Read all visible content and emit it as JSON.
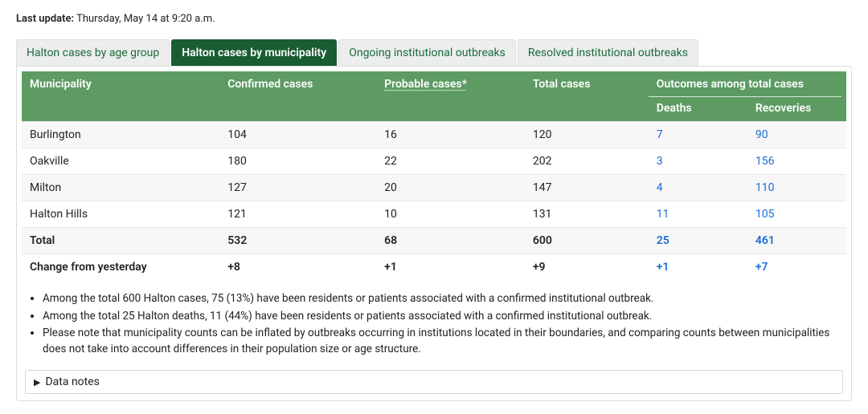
{
  "last_update": {
    "label": "Last update:",
    "value": "Thursday, May 14 at 9:20 a.m."
  },
  "tabs": [
    {
      "label": "Halton cases by age group",
      "active": false
    },
    {
      "label": "Halton cases by municipality",
      "active": true
    },
    {
      "label": "Ongoing institutional outbreaks",
      "active": false
    },
    {
      "label": "Resolved institutional outbreaks",
      "active": false
    }
  ],
  "table": {
    "header": {
      "municipality": "Municipality",
      "confirmed": "Confirmed cases",
      "probable": "Probable cases*",
      "total": "Total cases",
      "outcomes_group": "Outcomes among total cases",
      "deaths": "Deaths",
      "recoveries": "Recoveries"
    },
    "colors": {
      "header_bg": "#5d9b63",
      "header_fg": "#ffffff",
      "tab_active_bg": "#1a5d32",
      "tab_inactive_bg": "#eceeed",
      "tab_inactive_fg": "#1a6b3a",
      "row_odd_bg": "#f7f7f7",
      "row_even_bg": "#ffffff",
      "link_color": "#1a6bd6",
      "border_color": "#dddddd"
    },
    "rows": [
      {
        "municipality": "Burlington",
        "confirmed": "104",
        "probable": "16",
        "total": "120",
        "deaths": "7",
        "recoveries": "90",
        "bold": false
      },
      {
        "municipality": "Oakville",
        "confirmed": "180",
        "probable": "22",
        "total": "202",
        "deaths": "3",
        "recoveries": "156",
        "bold": false
      },
      {
        "municipality": "Milton",
        "confirmed": "127",
        "probable": "20",
        "total": "147",
        "deaths": "4",
        "recoveries": "110",
        "bold": false
      },
      {
        "municipality": "Halton Hills",
        "confirmed": "121",
        "probable": "10",
        "total": "131",
        "deaths": "11",
        "recoveries": "105",
        "bold": false
      },
      {
        "municipality": "Total",
        "confirmed": "532",
        "probable": "68",
        "total": "600",
        "deaths": "25",
        "recoveries": "461",
        "bold": true
      },
      {
        "municipality": "Change from yesterday",
        "confirmed": "+8",
        "probable": "+1",
        "total": "+9",
        "deaths": "+1",
        "recoveries": "+7",
        "bold": true
      }
    ]
  },
  "notes": [
    "Among the total 600 Halton cases, 75 (13%) have been residents or patients associated with a confirmed institutional outbreak.",
    "Among the total 25 Halton deaths, 11 (44%) have been residents or patients associated with a confirmed institutional outbreak.",
    "Please note that municipality counts can be inflated by outbreaks occurring in institutions located in their boundaries, and comparing counts between municipalities does not take into account differences in their population size or age structure."
  ],
  "data_notes_toggle": "Data notes"
}
